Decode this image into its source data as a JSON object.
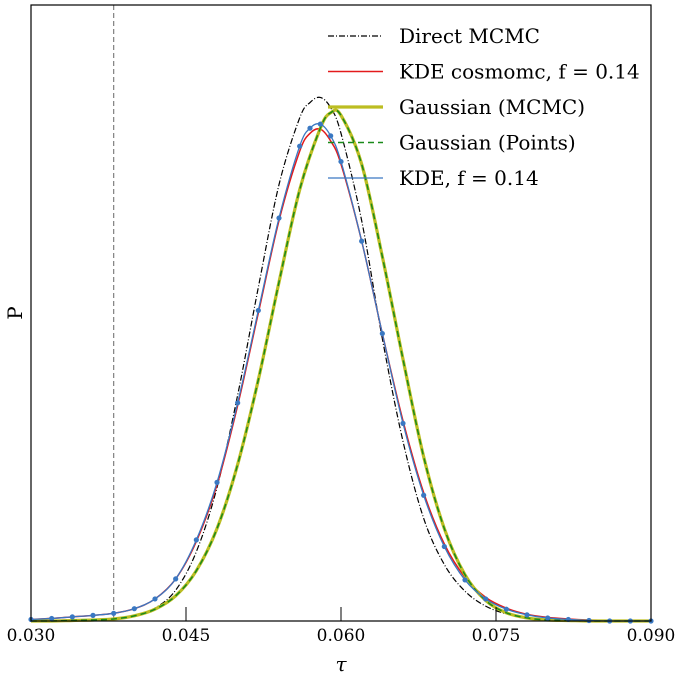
{
  "chart_data": {
    "type": "line",
    "xlabel": "τ",
    "ylabel": "P",
    "xlim": [
      0.03,
      0.09
    ],
    "ylim": [
      0,
      1.2
    ],
    "xticks": [
      0.03,
      0.045,
      0.06,
      0.075,
      0.09
    ],
    "xtick_labels": [
      "0.030",
      "0.045",
      "0.060",
      "0.075",
      "0.090"
    ],
    "grid": false,
    "legend_position": "top-right",
    "reference_line_x": 0.038,
    "colors": {
      "direct_mcmc": "#000000",
      "kde_cosmomc": "#e31a1c",
      "gaussian_mcmc": "#bcbd22",
      "gaussian_points": "#1a8a1a",
      "kde_points": "#3a78c2",
      "reference_line": "#808080"
    },
    "series": [
      {
        "name": "Direct MCMC",
        "style": "dash-dot",
        "x": [
          0.03,
          0.032,
          0.034,
          0.036,
          0.038,
          0.04,
          0.042,
          0.044,
          0.046,
          0.048,
          0.05,
          0.052,
          0.054,
          0.056,
          0.057,
          0.058,
          0.059,
          0.06,
          0.062,
          0.064,
          0.066,
          0.068,
          0.07,
          0.072,
          0.074,
          0.076,
          0.078,
          0.08,
          0.082,
          0.084,
          0.086,
          0.088,
          0.09
        ],
        "y": [
          0.0,
          0.0,
          0.001,
          0.002,
          0.005,
          0.011,
          0.025,
          0.06,
          0.135,
          0.26,
          0.44,
          0.65,
          0.85,
          0.98,
          1.01,
          1.02,
          1.0,
          0.95,
          0.78,
          0.55,
          0.35,
          0.2,
          0.11,
          0.058,
          0.029,
          0.014,
          0.007,
          0.003,
          0.001,
          0.0,
          0.0,
          0.0,
          0.0
        ]
      },
      {
        "name": "KDE cosmomc, f = 0.14",
        "style": "solid",
        "x": [
          0.03,
          0.032,
          0.034,
          0.036,
          0.038,
          0.04,
          0.042,
          0.044,
          0.046,
          0.048,
          0.05,
          0.052,
          0.054,
          0.056,
          0.057,
          0.058,
          0.059,
          0.06,
          0.062,
          0.064,
          0.066,
          0.068,
          0.07,
          0.072,
          0.074,
          0.076,
          0.078,
          0.08,
          0.082,
          0.084,
          0.086,
          0.088,
          0.09
        ],
        "y": [
          0.003,
          0.005,
          0.008,
          0.011,
          0.015,
          0.024,
          0.043,
          0.082,
          0.155,
          0.265,
          0.42,
          0.6,
          0.78,
          0.915,
          0.95,
          0.958,
          0.935,
          0.89,
          0.74,
          0.56,
          0.39,
          0.25,
          0.15,
          0.085,
          0.046,
          0.025,
          0.013,
          0.007,
          0.004,
          0.002,
          0.001,
          0.0,
          0.0
        ]
      },
      {
        "name": "Gaussian (MCMC)",
        "style": "solid-thick",
        "x": [
          0.03,
          0.032,
          0.034,
          0.036,
          0.038,
          0.04,
          0.042,
          0.044,
          0.046,
          0.048,
          0.05,
          0.052,
          0.054,
          0.056,
          0.058,
          0.059,
          0.06,
          0.062,
          0.064,
          0.066,
          0.068,
          0.07,
          0.072,
          0.074,
          0.076,
          0.078,
          0.08,
          0.082,
          0.084,
          0.086,
          0.088,
          0.09
        ],
        "y": [
          0.0,
          0.0,
          0.001,
          0.002,
          0.004,
          0.01,
          0.023,
          0.049,
          0.098,
          0.18,
          0.305,
          0.47,
          0.66,
          0.84,
          0.96,
          0.99,
          0.985,
          0.89,
          0.71,
          0.51,
          0.32,
          0.18,
          0.09,
          0.04,
          0.016,
          0.006,
          0.002,
          0.001,
          0.0,
          0.0,
          0.0,
          0.0
        ]
      },
      {
        "name": "Gaussian (Points)",
        "style": "dashed",
        "x": [
          0.03,
          0.032,
          0.034,
          0.036,
          0.038,
          0.04,
          0.042,
          0.044,
          0.046,
          0.048,
          0.05,
          0.052,
          0.054,
          0.056,
          0.058,
          0.059,
          0.06,
          0.062,
          0.064,
          0.066,
          0.068,
          0.07,
          0.072,
          0.074,
          0.076,
          0.078,
          0.08,
          0.082,
          0.084,
          0.086,
          0.088,
          0.09
        ],
        "y": [
          0.0,
          0.0,
          0.001,
          0.002,
          0.004,
          0.01,
          0.023,
          0.049,
          0.098,
          0.18,
          0.305,
          0.47,
          0.66,
          0.84,
          0.96,
          0.99,
          0.985,
          0.89,
          0.71,
          0.51,
          0.32,
          0.18,
          0.09,
          0.04,
          0.016,
          0.006,
          0.002,
          0.001,
          0.0,
          0.0,
          0.0,
          0.0
        ]
      },
      {
        "name": "KDE, f = 0.14",
        "style": "line-with-points",
        "x": [
          0.03,
          0.032,
          0.034,
          0.036,
          0.038,
          0.04,
          0.042,
          0.044,
          0.046,
          0.048,
          0.05,
          0.052,
          0.054,
          0.056,
          0.057,
          0.058,
          0.059,
          0.06,
          0.062,
          0.064,
          0.066,
          0.068,
          0.07,
          0.072,
          0.074,
          0.076,
          0.078,
          0.08,
          0.082,
          0.084,
          0.086,
          0.088,
          0.09
        ],
        "y": [
          0.003,
          0.005,
          0.008,
          0.011,
          0.015,
          0.024,
          0.043,
          0.082,
          0.158,
          0.27,
          0.425,
          0.605,
          0.785,
          0.925,
          0.96,
          0.968,
          0.945,
          0.895,
          0.74,
          0.56,
          0.385,
          0.245,
          0.145,
          0.08,
          0.043,
          0.023,
          0.012,
          0.006,
          0.003,
          0.001,
          0.0,
          0.0,
          0.0
        ]
      }
    ]
  }
}
